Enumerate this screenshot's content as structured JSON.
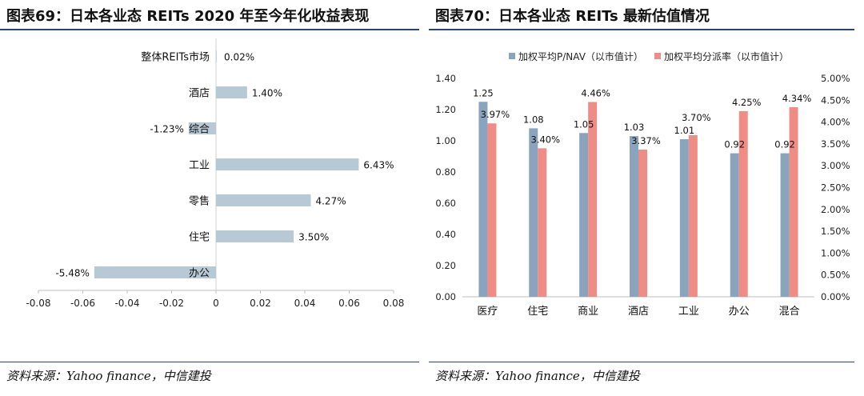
{
  "left": {
    "title": "图表69：日本各业态 REITs 2020 年至今年化收益表现",
    "source": "资料来源：Yahoo finance，中信建投",
    "chart_data": {
      "type": "bar",
      "orientation": "horizontal",
      "categories": [
        "整体REITs市场",
        "酒店",
        "综合",
        "工业",
        "零售",
        "住宅",
        "办公"
      ],
      "values": [
        0.0002,
        0.014,
        -0.0123,
        0.0643,
        0.0427,
        0.035,
        -0.0548
      ],
      "data_labels": [
        "0.02%",
        "1.40%",
        "-1.23%",
        "6.43%",
        "4.27%",
        "3.50%",
        "-5.48%"
      ],
      "xlim": [
        -0.08,
        0.08
      ],
      "xticks": [
        -0.08,
        -0.06,
        -0.04,
        -0.02,
        0,
        0.02,
        0.04,
        0.06,
        0.08
      ],
      "xtick_labels": [
        "-0.08",
        "-0.06",
        "-0.04",
        "-0.02",
        "0",
        "0.02",
        "0.04",
        "0.06",
        "0.08"
      ],
      "grid": false,
      "bar_color": "#b8c9d6"
    }
  },
  "right": {
    "title": "图表70：日本各业态 REITs 最新估值情况",
    "source": "资料来源：Yahoo finance，中信建投",
    "chart_data": {
      "type": "bar",
      "categories": [
        "医疗",
        "住宅",
        "商业",
        "酒店",
        "工业",
        "办公",
        "混合"
      ],
      "series": [
        {
          "name": "加权平均P/NAV（以市值计）",
          "axis": "left",
          "color": "#8aa4be",
          "values": [
            1.25,
            1.08,
            1.05,
            1.03,
            1.01,
            0.92,
            0.92
          ],
          "labels": [
            "1.25",
            "1.08",
            "1.05",
            "1.03",
            "1.01",
            "0.92",
            "0.92"
          ]
        },
        {
          "name": "加权平均分派率（以市值计）",
          "axis": "right",
          "color": "#f08c86",
          "values": [
            0.0397,
            0.034,
            0.0446,
            0.0337,
            0.037,
            0.0425,
            0.0434
          ],
          "labels": [
            "3.97%",
            "3.40%",
            "4.46%",
            "3.37%",
            "3.70%",
            "4.25%",
            "4.34%"
          ]
        }
      ],
      "ylim_left": [
        0,
        1.4
      ],
      "yticks_left": [
        "0.00",
        "0.20",
        "0.40",
        "0.60",
        "0.80",
        "1.00",
        "1.20",
        "1.40"
      ],
      "ylim_right": [
        0,
        0.05
      ],
      "yticks_right": [
        "0.00%",
        "0.50%",
        "1.00%",
        "1.50%",
        "2.00%",
        "2.50%",
        "3.00%",
        "3.50%",
        "4.00%",
        "4.50%",
        "5.00%"
      ],
      "legend": "top",
      "grid": false
    }
  }
}
